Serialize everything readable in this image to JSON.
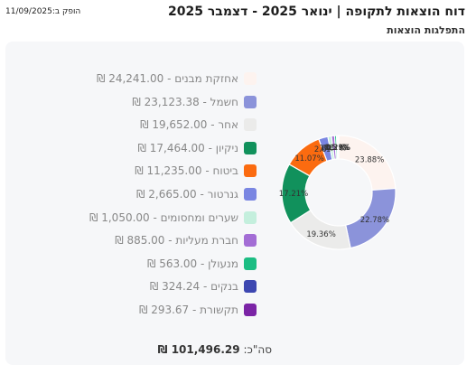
{
  "header": {
    "title": "דוח הוצאות לתקופה | ינואר 2025 - דצמבר 2025",
    "produced": "הופק ב:11/09/2025",
    "subtitle": "התפלגות הוצאות"
  },
  "total": {
    "label": "סה\"כ:",
    "value": "101,496.29 ₪"
  },
  "colors": {
    "card_bg": "#f6f7f9"
  },
  "chart_data": {
    "type": "pie",
    "donut": true,
    "currency": "₪",
    "categories": [
      "אחזקת מבנים",
      "חשמל",
      "אחר",
      "ניקיון",
      "ביטוח",
      "גנרטור",
      "שערים ומחסומים",
      "חברת מעליות",
      "מנעולן",
      "בנקים",
      "תקשורת"
    ],
    "values": [
      24241.0,
      23123.38,
      19652.0,
      17464.0,
      11235.0,
      2665.0,
      1050.0,
      885.0,
      563.0,
      324.24,
      293.67
    ],
    "value_labels": [
      "24,241.00",
      "23,123.38",
      "19,652.00",
      "17,464.00",
      "11,235.00",
      "2,665.00",
      "1,050.00",
      "885.00",
      "563.00",
      "324.24",
      "293.67"
    ],
    "percent_labels": [
      "23.88%",
      "22.78%",
      "19.36%",
      "17.21%",
      "11.07%",
      "2.63%",
      "1.03%",
      "0.87%",
      "0.55%",
      "0.32%",
      "0.29%"
    ],
    "colors": [
      "#fdf3ef",
      "#8b93da",
      "#ebebea",
      "#11915c",
      "#fb6b10",
      "#7a86e2",
      "#c4efdd",
      "#a36dd5",
      "#1cbd83",
      "#3d47b1",
      "#7b24a6"
    ]
  }
}
